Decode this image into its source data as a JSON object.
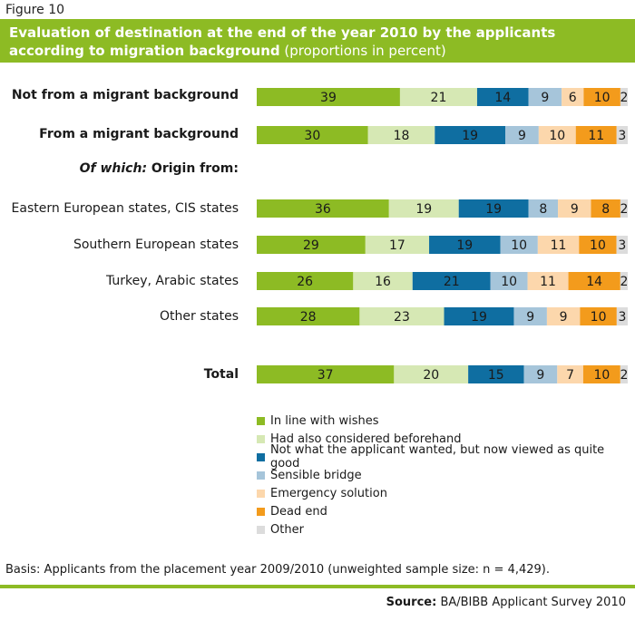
{
  "figure_label": "Figure 10",
  "title": "Evaluation of destination at the end of the year 2010 by the applicants according to migration background",
  "subtitle": "(proportions in percent)",
  "subhead_italic": "Of which:",
  "subhead_rest": " Origin from:",
  "basis": "Basis: Applicants from the placement year 2009/2010 (unweighted sample size: n = 4,429).",
  "source_label": "Source:",
  "source_text": " BA/BIBB Applicant Survey 2010",
  "colors": {
    "accent": "#8dbb24",
    "series": [
      "#8dbb24",
      "#d6e8b4",
      "#0f6ea1",
      "#a6c5da",
      "#fcd7ac",
      "#f39b1c",
      "#dcdcdc"
    ]
  },
  "chart_data": {
    "type": "bar",
    "orientation": "horizontal",
    "stacked": true,
    "categories": [
      "Not from a migrant background",
      "From a migrant background",
      "Eastern European states, CIS states",
      "Southern European states",
      "Turkey, Arabic states",
      "Other states",
      "Total"
    ],
    "bold_categories": [
      true,
      true,
      false,
      false,
      false,
      false,
      true
    ],
    "series": [
      {
        "name": "In line with wishes",
        "values": [
          39,
          30,
          36,
          29,
          26,
          28,
          37
        ]
      },
      {
        "name": "Had also considered beforehand",
        "values": [
          21,
          18,
          19,
          17,
          16,
          23,
          20
        ]
      },
      {
        "name": "Not what the applicant wanted, but now viewed as quite good",
        "values": [
          14,
          19,
          19,
          19,
          21,
          19,
          15
        ]
      },
      {
        "name": "Sensible bridge",
        "values": [
          9,
          9,
          8,
          10,
          10,
          9,
          9
        ]
      },
      {
        "name": "Emergency solution",
        "values": [
          6,
          10,
          9,
          11,
          11,
          9,
          7
        ]
      },
      {
        "name": "Dead end",
        "values": [
          10,
          11,
          8,
          10,
          14,
          10,
          10
        ]
      },
      {
        "name": "Other",
        "values": [
          2,
          3,
          2,
          3,
          2,
          3,
          2
        ]
      }
    ],
    "xlim": [
      0,
      100
    ],
    "legend_position": "bottom",
    "grid": false
  }
}
